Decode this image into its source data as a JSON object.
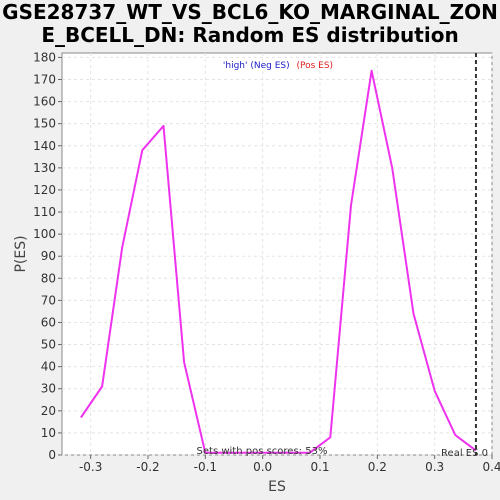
{
  "title_line1": "GSE28737_WT_VS_BCL6_KO_MARGINAL_ZON",
  "title_line2": "E_BCELL_DN: Random ES distribution",
  "chart_data": {
    "type": "line",
    "title": "GSE28737_WT_VS_BCL6_KO_MARGINAL_ZONE_BCELL_DN: Random ES distribution",
    "xlabel": "ES",
    "ylabel": "P(ES)",
    "xlim": [
      -0.35,
      0.4
    ],
    "ylim": [
      0,
      182
    ],
    "x_ticks": [
      -0.3,
      -0.2,
      -0.1,
      0.0,
      0.1,
      0.2,
      0.3,
      0.4
    ],
    "x_tick_labels": [
      "-0.3",
      "-0.2",
      "-0.1",
      "0.0",
      "0.1",
      "0.2",
      "0.3",
      "0.4"
    ],
    "y_ticks": [
      0,
      10,
      20,
      30,
      40,
      50,
      60,
      70,
      80,
      90,
      100,
      110,
      120,
      130,
      140,
      150,
      160,
      170,
      180
    ],
    "grid": true,
    "legend_placement": "top-center",
    "legend": [
      {
        "text": "'high' (Neg ES)",
        "color": "#2020cc"
      },
      {
        "text": "(Pos ES)",
        "color": "#e02020"
      }
    ],
    "series": [
      {
        "color": "#ee33ee",
        "x": [
          -0.317,
          -0.28,
          -0.245,
          -0.21,
          -0.173,
          -0.137,
          -0.1,
          0.082,
          0.118,
          0.154,
          0.19,
          0.226,
          0.263,
          0.3,
          0.336,
          0.372
        ],
        "y": [
          17,
          31,
          94,
          138,
          149,
          42,
          1,
          1,
          8,
          113,
          174,
          130,
          64,
          29,
          9,
          2
        ]
      }
    ],
    "reference_line": {
      "x": 0.372,
      "label": "Real ES 0",
      "style": "dashed",
      "color": "#333333"
    },
    "annotation": "Sets with pos scores: 53%"
  }
}
